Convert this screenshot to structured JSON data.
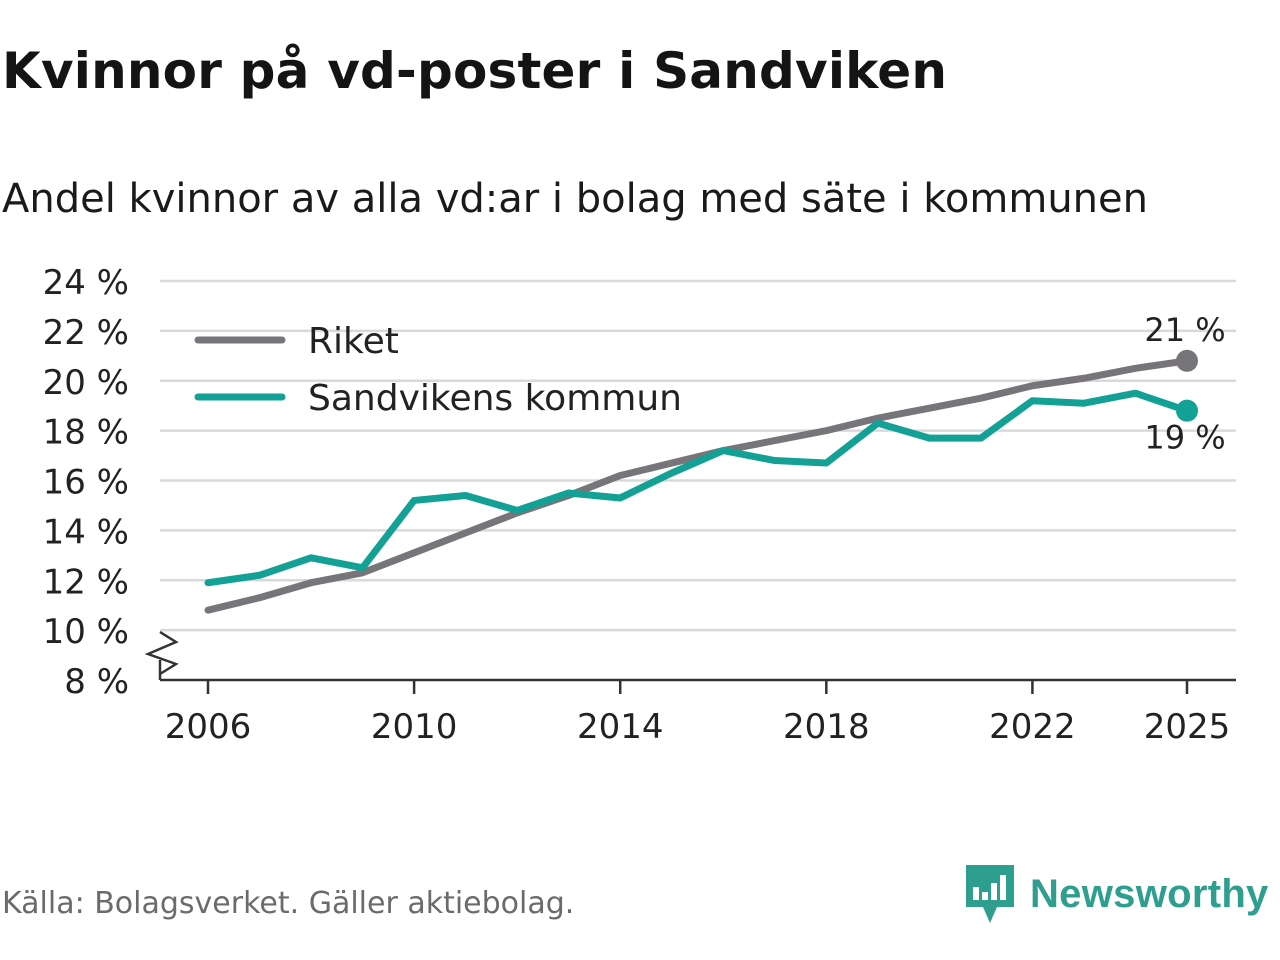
{
  "header": {
    "title": "Kvinnor på vd-poster i Sandviken",
    "subtitle": "Andel kvinnor av alla vd:ar i bolag med säte i kommunen"
  },
  "footer": {
    "source": "Källa: Bolagsverket. Gäller aktiebolag.",
    "brand": "Newsworthy"
  },
  "colors": {
    "riket": "#77757a",
    "sandviken": "#13a196",
    "grid": "#d9d9d9",
    "axis": "#333333",
    "brand": "#2e9e8f"
  },
  "chart_data": {
    "type": "line",
    "title": "Kvinnor på vd-poster i Sandviken",
    "subtitle": "Andel kvinnor av alla vd:ar i bolag med säte i kommunen",
    "xlabel": "",
    "ylabel": "",
    "x": [
      2006,
      2007,
      2008,
      2009,
      2010,
      2011,
      2012,
      2013,
      2014,
      2015,
      2016,
      2017,
      2018,
      2019,
      2020,
      2021,
      2022,
      2023,
      2024,
      2025
    ],
    "xlim": [
      2006,
      2025
    ],
    "xticks": [
      2006,
      2010,
      2014,
      2018,
      2022,
      2025
    ],
    "ylim": [
      8,
      24
    ],
    "yticks": [
      8,
      10,
      12,
      14,
      16,
      18,
      20,
      22,
      24
    ],
    "ytick_labels": [
      "8 %",
      "10 %",
      "12 %",
      "14 %",
      "16 %",
      "18 %",
      "20 %",
      "22 %",
      "24 %"
    ],
    "grid": true,
    "axis_break": true,
    "legend": "top-left",
    "series": [
      {
        "name": "Riket",
        "color_key": "riket",
        "values": [
          10.8,
          11.3,
          11.9,
          12.3,
          13.1,
          13.9,
          14.7,
          15.4,
          16.2,
          16.7,
          17.2,
          17.6,
          18.0,
          18.5,
          18.9,
          19.3,
          19.8,
          20.1,
          20.5,
          20.8
        ],
        "end_label": "21 %",
        "end_label_position": "above"
      },
      {
        "name": "Sandvikens kommun",
        "color_key": "sandviken",
        "values": [
          11.9,
          12.2,
          12.9,
          12.5,
          15.2,
          15.4,
          14.8,
          15.5,
          15.3,
          16.3,
          17.2,
          16.8,
          16.7,
          18.3,
          17.7,
          17.7,
          19.2,
          19.1,
          19.5,
          18.8
        ],
        "end_label": "19 %",
        "end_label_position": "below"
      }
    ]
  }
}
